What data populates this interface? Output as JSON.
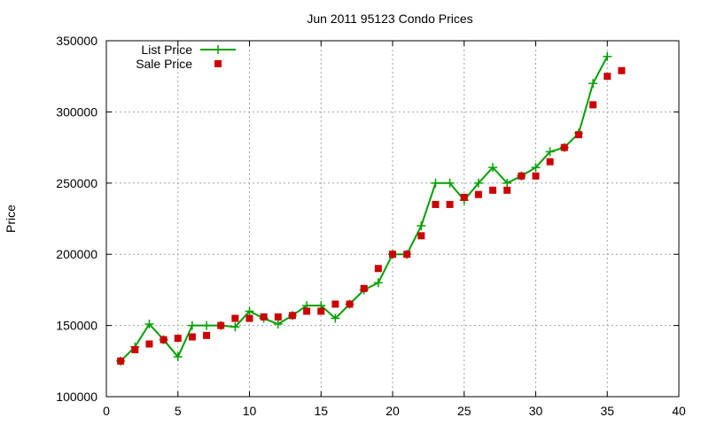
{
  "chart_data": {
    "type": "line",
    "title": "Jun 2011 95123 Condo Prices",
    "xlabel": "",
    "ylabel": "Price",
    "xlim": [
      0,
      40
    ],
    "ylim": [
      100000,
      350000
    ],
    "xticks": [
      0,
      5,
      10,
      15,
      20,
      25,
      30,
      35,
      40
    ],
    "yticks": [
      100000,
      150000,
      200000,
      250000,
      300000,
      350000
    ],
    "grid": true,
    "legend_position": "top-left",
    "series": [
      {
        "name": "List Price",
        "style": "line-with-plus-markers",
        "color": "#00a000",
        "points": [
          [
            1,
            125000
          ],
          [
            2,
            135000
          ],
          [
            3,
            151000
          ],
          [
            4,
            140000
          ],
          [
            5,
            128000
          ],
          [
            6,
            150000
          ],
          [
            7,
            150000
          ],
          [
            8,
            150000
          ],
          [
            9,
            149000
          ],
          [
            10,
            160000
          ],
          [
            11,
            155000
          ],
          [
            12,
            151000
          ],
          [
            13,
            157000
          ],
          [
            14,
            164000
          ],
          [
            15,
            164000
          ],
          [
            16,
            155000
          ],
          [
            17,
            165000
          ],
          [
            18,
            175000
          ],
          [
            19,
            180000
          ],
          [
            20,
            200000
          ],
          [
            21,
            200000
          ],
          [
            22,
            220000
          ],
          [
            23,
            250000
          ],
          [
            24,
            250000
          ],
          [
            25,
            238000
          ],
          [
            26,
            250000
          ],
          [
            27,
            261000
          ],
          [
            28,
            250000
          ],
          [
            29,
            255000
          ],
          [
            30,
            261000
          ],
          [
            31,
            272000
          ],
          [
            32,
            275000
          ],
          [
            33,
            285000
          ],
          [
            34,
            320000
          ],
          [
            35,
            339000
          ]
        ]
      },
      {
        "name": "Sale Price",
        "style": "square-markers",
        "color": "#cc0000",
        "points": [
          [
            1,
            125000
          ],
          [
            2,
            133000
          ],
          [
            3,
            137000
          ],
          [
            4,
            140000
          ],
          [
            5,
            141000
          ],
          [
            6,
            142000
          ],
          [
            7,
            143000
          ],
          [
            8,
            150000
          ],
          [
            9,
            155000
          ],
          [
            10,
            155000
          ],
          [
            11,
            156000
          ],
          [
            12,
            156000
          ],
          [
            13,
            157000
          ],
          [
            14,
            160000
          ],
          [
            15,
            160000
          ],
          [
            16,
            165000
          ],
          [
            17,
            165000
          ],
          [
            18,
            176000
          ],
          [
            19,
            190000
          ],
          [
            20,
            200000
          ],
          [
            21,
            200000
          ],
          [
            22,
            213000
          ],
          [
            23,
            235000
          ],
          [
            24,
            235000
          ],
          [
            25,
            240000
          ],
          [
            26,
            242000
          ],
          [
            27,
            245000
          ],
          [
            28,
            245000
          ],
          [
            29,
            255000
          ],
          [
            30,
            255000
          ],
          [
            31,
            265000
          ],
          [
            32,
            275000
          ],
          [
            33,
            284000
          ],
          [
            34,
            305000
          ],
          [
            35,
            325000
          ],
          [
            36,
            329000
          ]
        ]
      }
    ]
  }
}
